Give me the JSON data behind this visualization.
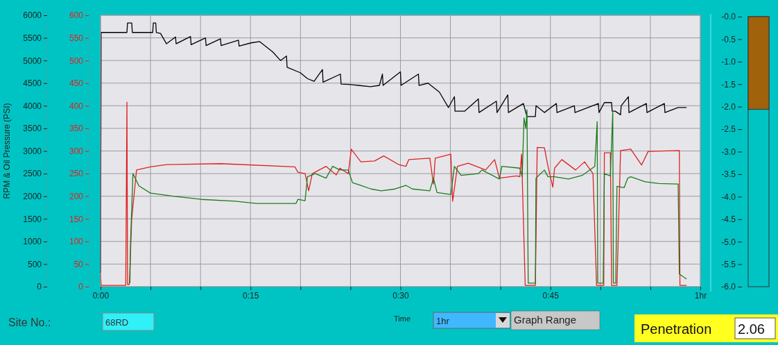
{
  "chart_data": [
    {
      "type": "line",
      "xlabel": "Time",
      "ylabel": "RPM & Oil Pressure (PSI)",
      "xlim": [
        0,
        1
      ],
      "ylim": [
        0,
        6000
      ],
      "y2lim": [
        0,
        600
      ],
      "xticks": [
        {
          "value": 0,
          "label": "0:00"
        },
        {
          "value": 0.0833,
          "label": null
        },
        {
          "value": 0.1667,
          "label": null
        },
        {
          "value": 0.25,
          "label": "0:15"
        },
        {
          "value": 0.3333,
          "label": null
        },
        {
          "value": 0.4167,
          "label": null
        },
        {
          "value": 0.5,
          "label": "0:30"
        },
        {
          "value": 0.5833,
          "label": null
        },
        {
          "value": 0.6667,
          "label": null
        },
        {
          "value": 0.75,
          "label": "0:45"
        },
        {
          "value": 0.8333,
          "label": null
        },
        {
          "value": 0.9167,
          "label": null
        },
        {
          "value": 1,
          "label": "1hr"
        }
      ],
      "yticks": [
        0,
        500,
        1000,
        1500,
        2000,
        2500,
        3000,
        3500,
        4000,
        4500,
        5000,
        5500,
        6000
      ],
      "y2ticks": [
        0,
        50,
        100,
        150,
        200,
        250,
        300,
        350,
        400,
        450,
        500,
        550,
        600
      ],
      "grid": true,
      "annotations": [
        "Site No.:",
        "68RD",
        "1hr",
        "Graph Range"
      ],
      "series": [
        {
          "color": "#000000",
          "x": [
            0,
            0.001,
            0.044,
            0.045,
            0.052,
            0.053,
            0.087,
            0.088,
            0.092,
            0.093,
            0.1,
            0.11,
            0.125,
            0.126,
            0.15,
            0.151,
            0.175,
            0.176,
            0.2,
            0.201,
            0.23,
            0.231,
            0.251,
            0.265,
            0.287,
            0.3,
            0.31,
            0.311,
            0.333,
            0.345,
            0.356,
            0.37,
            0.371,
            0.4,
            0.401,
            0.414,
            0.43,
            0.45,
            0.465,
            0.47,
            0.471,
            0.5,
            0.501,
            0.53,
            0.531,
            0.546,
            0.565,
            0.58,
            0.59,
            0.591,
            0.607,
            0.63,
            0.631,
            0.66,
            0.661,
            0.679,
            0.68,
            0.705,
            0.711,
            0.725,
            0.726,
            0.74,
            0.76,
            0.761,
            0.79,
            0.791,
            0.83,
            0.831,
            0.84,
            0.852,
            0.853,
            0.858,
            0.867,
            0.868,
            0.88,
            0.881,
            0.91,
            0.911,
            0.94,
            0.941,
            0.963,
            0.977
          ],
          "values": [
            300,
            5620,
            5620,
            5830,
            5830,
            5620,
            5620,
            5830,
            5830,
            5620,
            5600,
            5370,
            5520,
            5370,
            5530,
            5350,
            5500,
            5330,
            5480,
            5330,
            5450,
            5320,
            5390,
            5420,
            5190,
            5000,
            5100,
            4850,
            4730,
            4600,
            4540,
            4800,
            4520,
            4700,
            4480,
            4470,
            4450,
            4420,
            4450,
            4700,
            4450,
            4750,
            4450,
            4700,
            4450,
            4500,
            4300,
            3960,
            4200,
            3880,
            3880,
            4150,
            3850,
            4100,
            3850,
            4240,
            3850,
            4050,
            3760,
            3760,
            4000,
            3850,
            4050,
            3850,
            4000,
            3850,
            4050,
            3850,
            4070,
            4070,
            3880,
            3880,
            3800,
            4000,
            4200,
            3850,
            4050,
            3850,
            4050,
            3850,
            3960,
            3960
          ]
        },
        {
          "color": "#e02020",
          "axis": "y2",
          "x": [
            0,
            0.001,
            0.042,
            0.043,
            0.044,
            0.045,
            0.048,
            0.052,
            0.06,
            0.083,
            0.11,
            0.2,
            0.324,
            0.329,
            0.341,
            0.347,
            0.353,
            0.376,
            0.393,
            0.399,
            0.413,
            0.418,
            0.434,
            0.457,
            0.472,
            0.497,
            0.509,
            0.514,
            0.549,
            0.555,
            0.558,
            0.584,
            0.587,
            0.595,
            0.613,
            0.642,
            0.657,
            0.665,
            0.694,
            0.699,
            0.702,
            0.708,
            0.725,
            0.728,
            0.74,
            0.746,
            0.754,
            0.757,
            0.769,
            0.792,
            0.807,
            0.821,
            0.827,
            0.839,
            0.84,
            0.85,
            0.852,
            0.861,
            0.867,
            0.884,
            0.902,
            0.913,
            0.965,
            0.966,
            0.977
          ],
          "values": [
            28,
            3,
            3,
            204,
            408,
            5,
            5,
            150,
            258,
            265,
            270,
            272,
            265,
            253,
            250,
            212,
            250,
            266,
            247,
            262,
            250,
            304,
            276,
            278,
            289,
            270,
            266,
            281,
            284,
            227,
            284,
            293,
            189,
            266,
            273,
            258,
            281,
            240,
            245,
            243,
            293,
            3,
            3,
            308,
            307,
            266,
            220,
            262,
            281,
            258,
            276,
            250,
            3,
            3,
            296,
            296,
            3,
            3,
            301,
            304,
            269,
            299,
            301,
            3,
            3
          ]
        },
        {
          "color": "#1e7a1e",
          "axis": "y2",
          "x": [
            0.049,
            0.05,
            0.052,
            0.054,
            0.064,
            0.083,
            0.121,
            0.168,
            0.225,
            0.26,
            0.326,
            0.329,
            0.341,
            0.345,
            0.358,
            0.376,
            0.387,
            0.399,
            0.413,
            0.42,
            0.434,
            0.451,
            0.468,
            0.491,
            0.509,
            0.52,
            0.549,
            0.555,
            0.561,
            0.584,
            0.59,
            0.601,
            0.63,
            0.636,
            0.665,
            0.669,
            0.699,
            0.703,
            0.706,
            0.709,
            0.711,
            0.713,
            0.725,
            0.726,
            0.74,
            0.746,
            0.757,
            0.78,
            0.803,
            0.824,
            0.828,
            0.829,
            0.838,
            0.84,
            0.85,
            0.854,
            0.855,
            0.859,
            0.861,
            0.873,
            0.879,
            0.884,
            0.908,
            0.931,
            0.963,
            0.965,
            0.977
          ],
          "values": [
            8,
            97,
            173,
            250,
            223,
            207,
            200,
            193,
            189,
            184,
            184,
            193,
            190,
            243,
            250,
            240,
            266,
            258,
            258,
            230,
            224,
            216,
            212,
            216,
            224,
            216,
            212,
            240,
            208,
            204,
            266,
            246,
            250,
            258,
            238,
            266,
            262,
            243,
            373,
            350,
            391,
            8,
            8,
            240,
            258,
            243,
            243,
            238,
            246,
            266,
            365,
            8,
            8,
            250,
            245,
            388,
            8,
            8,
            222,
            219,
            240,
            243,
            232,
            228,
            227,
            28,
            17
          ]
        }
      ]
    },
    {
      "type": "bar",
      "categories": [
        null
      ],
      "values": [
        -2.06
      ],
      "color": "#a0620a",
      "ylim": [
        -6,
        0
      ],
      "yticks": [
        {
          "value": 0,
          "label": "-0.0"
        },
        {
          "value": -0.5,
          "label": "-0.5"
        },
        {
          "value": -1,
          "label": "-1.0"
        },
        {
          "value": -1.5,
          "label": "-1.5"
        },
        {
          "value": -2,
          "label": "-2.0"
        },
        {
          "value": -2.5,
          "label": "-2.5"
        },
        {
          "value": -3,
          "label": "-3.0"
        },
        {
          "value": -3.5,
          "label": "-3.5"
        },
        {
          "value": -4,
          "label": "-4.0"
        },
        {
          "value": -4.5,
          "label": "-4.5"
        },
        {
          "value": -5,
          "label": "-5.0"
        },
        {
          "value": -5.5,
          "label": "-5.5"
        },
        {
          "value": -6,
          "label": "-6.0"
        }
      ],
      "xlabel": "Penetration",
      "annotations": [
        "2.06"
      ]
    }
  ]
}
